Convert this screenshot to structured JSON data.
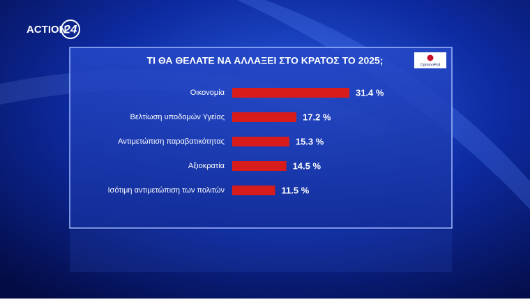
{
  "channel_logo": {
    "name": "ACTION",
    "number": "24"
  },
  "source": "OpinionPoll",
  "chart_data": {
    "type": "bar",
    "orientation": "horizontal",
    "title": "ΤΙ ΘΑ ΘΕΛΑΤΕ ΝΑ ΑΛΛΑΞΕΙ ΣΤΟ ΚΡΑΤΟΣ ΤΟ 2025;",
    "categories": [
      "Οικονομία",
      "Βελτίωση υποδομών Υγείας",
      "Αντιμετώπιση παραβατικότητας",
      "Αξιοκρατία",
      "Ισότιμη αντιμετώπιση των πολιτών"
    ],
    "values": [
      31.4,
      17.2,
      15.3,
      14.5,
      11.5
    ],
    "value_labels": [
      "31.4 %",
      "17.2 %",
      "15.3 %",
      "14.5 %",
      "11.5 %"
    ],
    "color": "#d81c1c"
  }
}
